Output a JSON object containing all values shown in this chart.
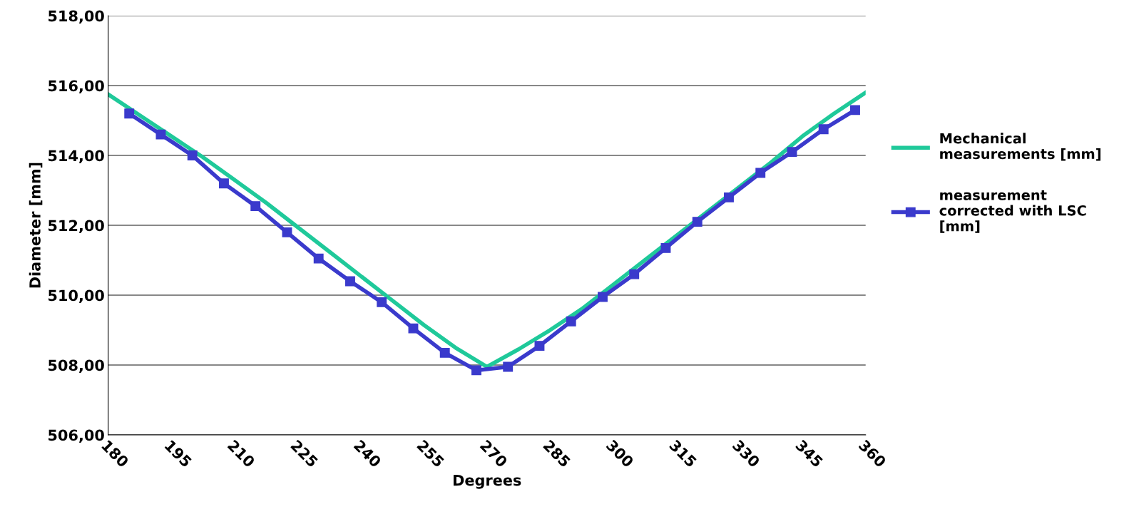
{
  "chart_data": {
    "type": "line",
    "xlabel": "Degrees",
    "ylabel": "Diameter [mm]",
    "xlim": [
      180,
      360
    ],
    "xticks": [
      180,
      195,
      210,
      225,
      240,
      255,
      270,
      285,
      300,
      315,
      330,
      345,
      360
    ],
    "ylim": [
      506,
      518
    ],
    "yticks": [
      {
        "value": 506,
        "label": "506,00"
      },
      {
        "value": 508,
        "label": "508,00"
      },
      {
        "value": 510,
        "label": "510,00"
      },
      {
        "value": 512,
        "label": "512,00"
      },
      {
        "value": 514,
        "label": "514,00"
      },
      {
        "value": 516,
        "label": "516,00"
      },
      {
        "value": 518,
        "label": "518,00"
      }
    ],
    "grid": "y",
    "legend": "right",
    "series": [
      {
        "name": "Mechanical\nmeasurements [mm]",
        "color": "#1fc99a",
        "marker": "none",
        "x": [
          180,
          187.5,
          195,
          202.5,
          210,
          217.5,
          225,
          232.5,
          240,
          247.5,
          255,
          262.5,
          270,
          277.5,
          285,
          292.5,
          300,
          307.5,
          315,
          322.5,
          330,
          337.5,
          345,
          352.5,
          360
        ],
        "values": [
          515.75,
          515.15,
          514.55,
          513.95,
          513.3,
          512.65,
          511.95,
          511.25,
          510.55,
          509.85,
          509.15,
          508.5,
          507.95,
          508.45,
          509.0,
          509.6,
          510.3,
          511.0,
          511.7,
          512.4,
          513.1,
          513.8,
          514.55,
          515.2,
          515.8
        ]
      },
      {
        "name": "measurement\ncorrected with LSC\n[mm]",
        "color": "#3a3acc",
        "marker": "square",
        "x": [
          185,
          192.5,
          200,
          207.5,
          215,
          222.5,
          230,
          237.5,
          245,
          252.5,
          260,
          267.5,
          275,
          282.5,
          290,
          297.5,
          305,
          312.5,
          320,
          327.5,
          335,
          342.5,
          350,
          357.5
        ],
        "values": [
          515.2,
          514.6,
          514.0,
          513.2,
          512.55,
          511.8,
          511.05,
          510.4,
          509.8,
          509.05,
          508.35,
          507.85,
          507.95,
          508.55,
          509.25,
          509.95,
          510.6,
          511.35,
          512.1,
          512.8,
          513.5,
          514.1,
          514.75,
          515.3
        ]
      }
    ]
  }
}
